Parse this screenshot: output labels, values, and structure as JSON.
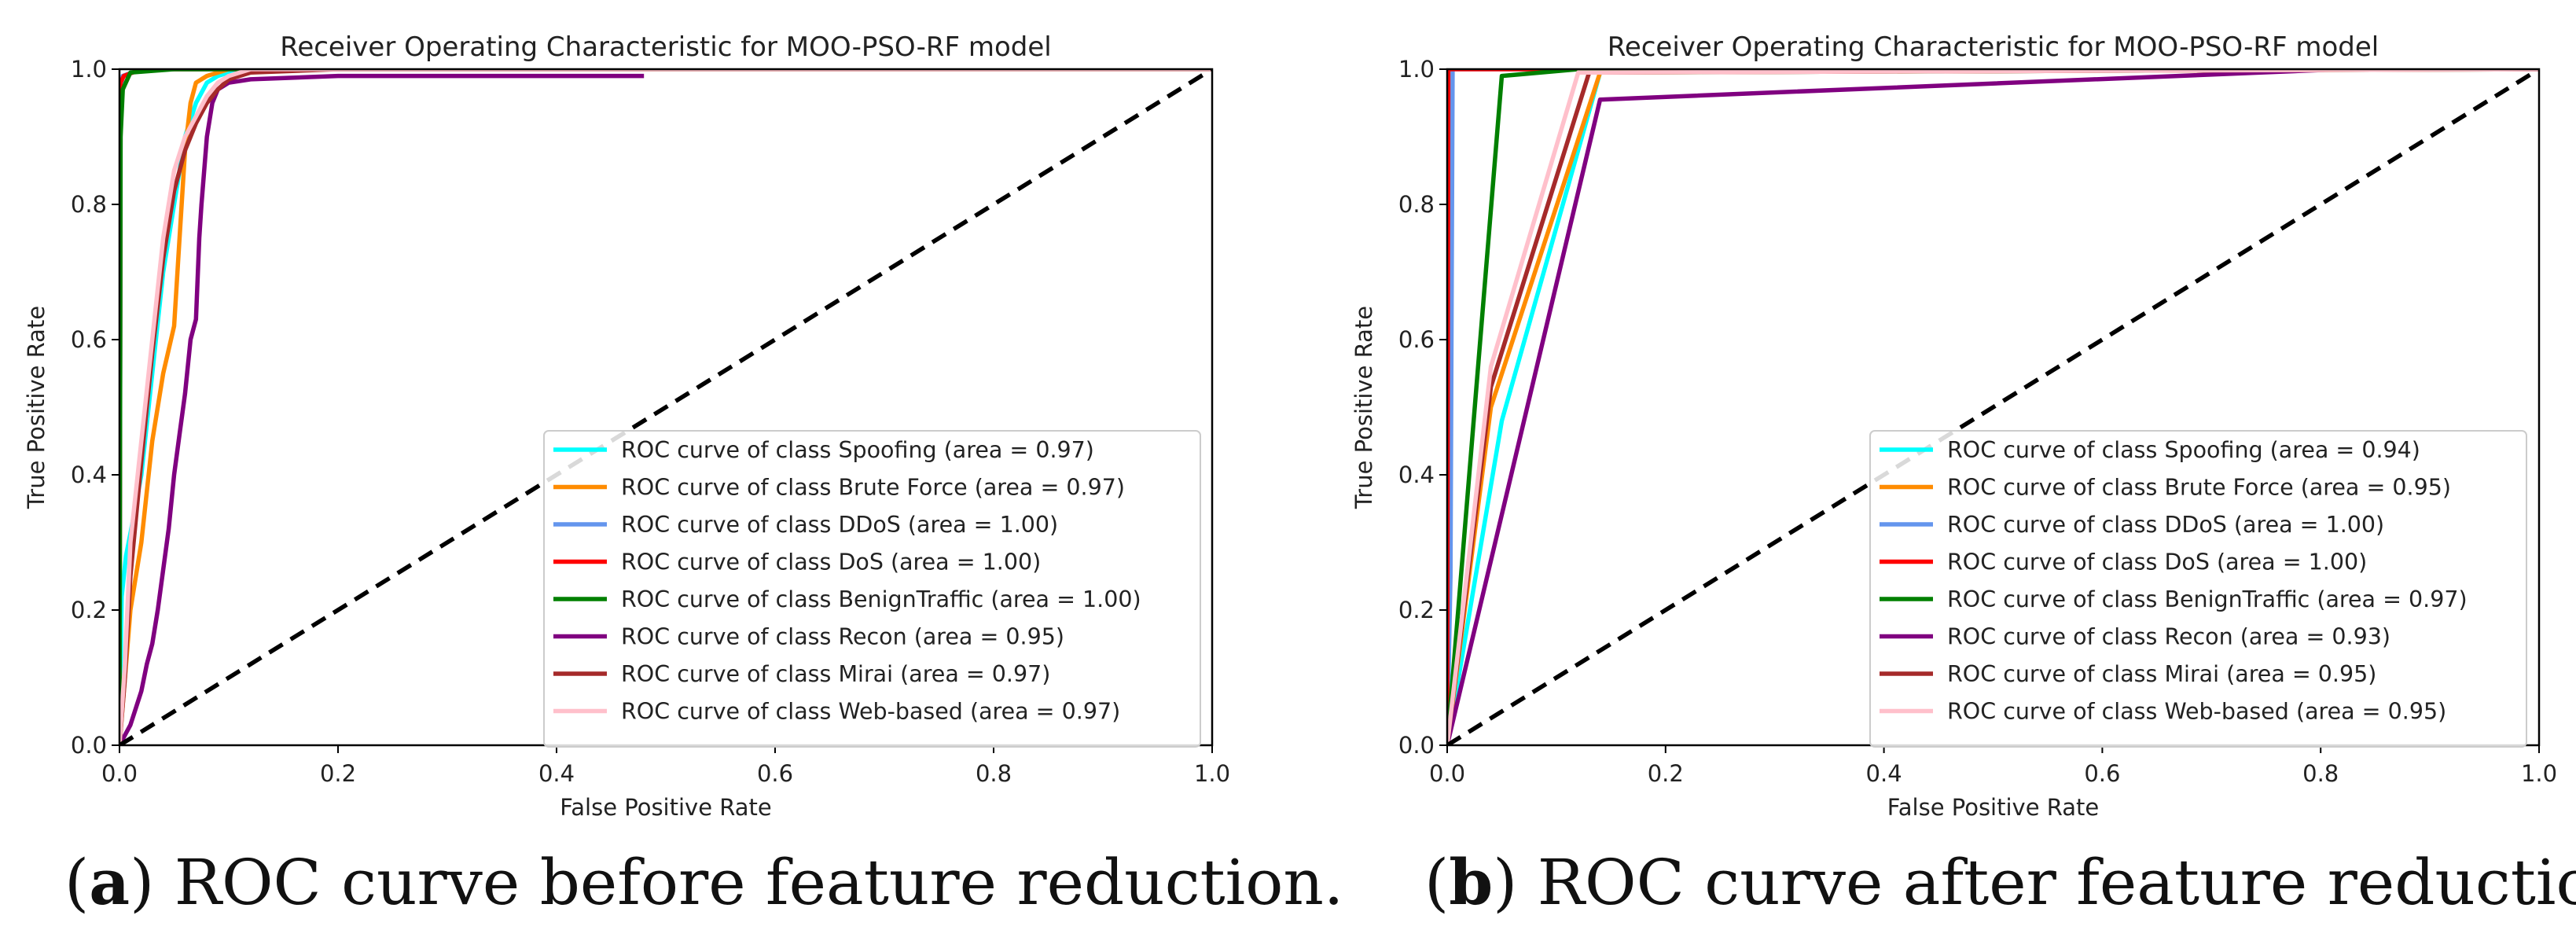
{
  "chart_data": [
    {
      "type": "line",
      "title": "Receiver Operating Characteristic for MOO-PSO-RF model",
      "xlabel": "False Positive Rate",
      "ylabel": "True Positive Rate",
      "xlim": [
        0,
        1
      ],
      "ylim": [
        0,
        1
      ],
      "xticks": [
        "0.0",
        "0.2",
        "0.4",
        "0.6",
        "0.8",
        "1.0"
      ],
      "yticks": [
        "0.0",
        "0.2",
        "0.4",
        "0.6",
        "0.8",
        "1.0"
      ],
      "legend_position": "lower-right",
      "diagonal": {
        "x": [
          0,
          1
        ],
        "y": [
          0,
          1
        ],
        "color": "#000000",
        "style": "dashed"
      },
      "series": [
        {
          "name": "ROC curve of class Spoofing (area = 0.97)",
          "color": "#00ffff",
          "x": [
            0,
            0.002,
            0.006,
            0.012,
            0.02,
            0.03,
            0.04,
            0.05,
            0.06,
            0.07,
            0.08,
            0.09,
            0.1,
            0.12,
            0.2,
            1.0
          ],
          "y": [
            0,
            0.22,
            0.28,
            0.33,
            0.4,
            0.55,
            0.7,
            0.8,
            0.9,
            0.95,
            0.98,
            0.99,
            0.995,
            1.0,
            1.0,
            1.0
          ]
        },
        {
          "name": "ROC curve of class Brute Force (area = 0.97)",
          "color": "#ff8c00",
          "x": [
            0,
            0.01,
            0.02,
            0.03,
            0.04,
            0.05,
            0.055,
            0.06,
            0.065,
            0.07,
            0.08,
            0.1,
            1.0
          ],
          "y": [
            0,
            0.2,
            0.3,
            0.45,
            0.55,
            0.62,
            0.75,
            0.88,
            0.95,
            0.98,
            0.99,
            1.0,
            1.0
          ]
        },
        {
          "name": "ROC curve of class DDoS (area = 1.00)",
          "color": "#6495ed",
          "x": [
            0,
            0.001,
            0.003,
            0.02,
            1.0
          ],
          "y": [
            0,
            0.97,
            0.99,
            1.0,
            1.0
          ]
        },
        {
          "name": "ROC curve of class DoS (area = 1.00)",
          "color": "#ff0000",
          "x": [
            0,
            0.001,
            0.004,
            0.02,
            1.0
          ],
          "y": [
            0,
            0.98,
            0.99,
            1.0,
            1.0
          ]
        },
        {
          "name": "ROC curve of class BenignTraffic (area = 1.00)",
          "color": "#008000",
          "x": [
            0,
            0.001,
            0.003,
            0.01,
            0.05,
            0.1,
            1.0
          ],
          "y": [
            0,
            0.9,
            0.97,
            0.995,
            1.0,
            1.0,
            1.0
          ]
        },
        {
          "name": "ROC curve of class Recon (area = 0.95)",
          "color": "#800080",
          "x": [
            0,
            0.01,
            0.02,
            0.025,
            0.03,
            0.035,
            0.045,
            0.05,
            0.055,
            0.06,
            0.065,
            0.07,
            0.073,
            0.075,
            0.08,
            0.085,
            0.09,
            0.1,
            0.12,
            0.2,
            0.3,
            0.48
          ],
          "y": [
            0,
            0.03,
            0.08,
            0.12,
            0.15,
            0.2,
            0.32,
            0.4,
            0.46,
            0.52,
            0.6,
            0.63,
            0.75,
            0.8,
            0.9,
            0.95,
            0.97,
            0.98,
            0.985,
            0.99,
            0.99,
            0.99
          ]
        },
        {
          "name": "ROC curve of class Mirai (area = 0.97)",
          "color": "#a52a2a",
          "x": [
            0,
            0.005,
            0.01,
            0.02,
            0.03,
            0.04,
            0.05,
            0.06,
            0.07,
            0.08,
            0.09,
            0.1,
            0.12,
            0.2,
            1.0
          ],
          "y": [
            0,
            0.1,
            0.25,
            0.42,
            0.58,
            0.72,
            0.82,
            0.88,
            0.92,
            0.95,
            0.97,
            0.985,
            0.995,
            1.0,
            1.0
          ]
        },
        {
          "name": "ROC curve of class Web-based (area = 0.97)",
          "color": "#ffc0cb",
          "x": [
            0,
            0.005,
            0.01,
            0.02,
            0.03,
            0.04,
            0.05,
            0.06,
            0.07,
            0.08,
            0.09,
            0.1,
            0.12,
            0.2,
            1.0
          ],
          "y": [
            0,
            0.12,
            0.3,
            0.45,
            0.6,
            0.75,
            0.85,
            0.9,
            0.93,
            0.96,
            0.98,
            0.99,
            1.0,
            1.0,
            1.0
          ]
        }
      ]
    },
    {
      "type": "line",
      "title": "Receiver Operating Characteristic for MOO-PSO-RF model",
      "xlabel": "False Positive Rate",
      "ylabel": "True Positive Rate",
      "xlim": [
        0,
        1
      ],
      "ylim": [
        0,
        1
      ],
      "xticks": [
        "0.0",
        "0.2",
        "0.4",
        "0.6",
        "0.8",
        "1.0"
      ],
      "yticks": [
        "0.0",
        "0.2",
        "0.4",
        "0.6",
        "0.8",
        "1.0"
      ],
      "legend_position": "lower-right",
      "diagonal": {
        "x": [
          0,
          1
        ],
        "y": [
          0,
          1
        ],
        "color": "#000000",
        "style": "dashed"
      },
      "series": [
        {
          "name": "ROC curve of class Spoofing (area = 0.94)",
          "color": "#00ffff",
          "x": [
            0,
            0.05,
            0.14,
            1.0
          ],
          "y": [
            0,
            0.48,
            0.995,
            1.0
          ]
        },
        {
          "name": "ROC curve of class Brute Force (area = 0.95)",
          "color": "#ff8c00",
          "x": [
            0,
            0.04,
            0.14,
            1.0
          ],
          "y": [
            0,
            0.5,
            0.995,
            1.0
          ]
        },
        {
          "name": "ROC curve of class DDoS (area = 1.00)",
          "color": "#6495ed",
          "x": [
            0,
            0.003,
            0.005,
            1.0
          ],
          "y": [
            0,
            0.25,
            1.0,
            1.0
          ]
        },
        {
          "name": "ROC curve of class DoS (area = 1.00)",
          "color": "#ff0000",
          "x": [
            0,
            0.001,
            1.0
          ],
          "y": [
            0,
            1.0,
            1.0
          ]
        },
        {
          "name": "ROC curve of class BenignTraffic (area = 0.97)",
          "color": "#008000",
          "x": [
            0,
            0.05,
            0.12,
            1.0
          ],
          "y": [
            0,
            0.99,
            1.0,
            1.0
          ]
        },
        {
          "name": "ROC curve of class Recon (area = 0.93)",
          "color": "#800080",
          "x": [
            0,
            0.14,
            0.82,
            1.0
          ],
          "y": [
            0,
            0.955,
            1.0,
            1.0
          ]
        },
        {
          "name": "ROC curve of class Mirai (area = 0.95)",
          "color": "#a52a2a",
          "x": [
            0,
            0.04,
            0.13,
            1.0
          ],
          "y": [
            0,
            0.53,
            0.995,
            1.0
          ]
        },
        {
          "name": "ROC curve of class Web-based (area = 0.95)",
          "color": "#ffc0cb",
          "x": [
            0,
            0.04,
            0.12,
            1.0
          ],
          "y": [
            0,
            0.56,
            0.995,
            1.0
          ]
        }
      ]
    }
  ],
  "captions": [
    {
      "label": "a",
      "text": ") ROC curve before feature reduction."
    },
    {
      "label": "b",
      "text": ") ROC curve after feature reduction."
    }
  ]
}
